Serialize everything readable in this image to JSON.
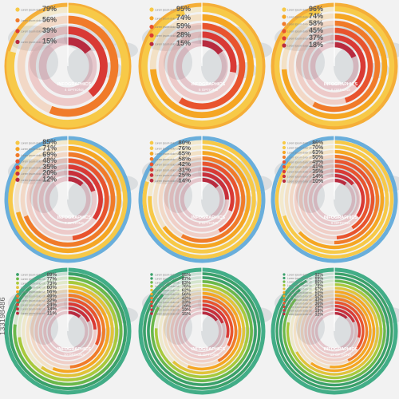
{
  "watermark": "133198486",
  "infographics_label": "INFOGRAPHICS",
  "item_caption": "Lorem ipsum dolor sit",
  "colors": {
    "background": "#f2f2f2",
    "map": "#c9cdd2",
    "orange_ring": "#f5a623",
    "blue_ring": "#5aa6d8",
    "green_ring": "#2fa57b",
    "warm_scale": [
      "#f7c948",
      "#f5a623",
      "#f07b2a",
      "#e8542e",
      "#d93a35",
      "#c8303b",
      "#b82b3f"
    ],
    "green_scale": [
      "#3aa06a",
      "#6ab84a",
      "#a8c93c",
      "#e0c33a",
      "#f5a623",
      "#f07b2a",
      "#e8542e",
      "#d93a35",
      "#c8303b",
      "#b82b3f"
    ]
  },
  "panels": [
    {
      "theme": "orange",
      "subtitle": "4 OPTIONS",
      "values": [
        "79%",
        "56%",
        "39%",
        "15%"
      ],
      "percents": [
        79,
        56,
        39,
        15
      ]
    },
    {
      "theme": "orange",
      "subtitle": "5 OPTIONS",
      "values": [
        "95%",
        "74%",
        "59%",
        "28%",
        "15%"
      ],
      "percents": [
        95,
        74,
        59,
        28,
        15
      ]
    },
    {
      "theme": "orange",
      "subtitle": "6 OPTIONS",
      "values": [
        "96%",
        "74%",
        "58%",
        "45%",
        "37%",
        "18%"
      ],
      "percents": [
        96,
        74,
        58,
        45,
        37,
        18
      ]
    },
    {
      "theme": "blue",
      "subtitle": "7 OPTIONS",
      "values": [
        "85%",
        "71%",
        "69%",
        "48%",
        "35%",
        "20%",
        "12%"
      ],
      "percents": [
        85,
        71,
        69,
        48,
        35,
        20,
        12
      ]
    },
    {
      "theme": "blue",
      "subtitle": "8 OPTIONS",
      "values": [
        "80%",
        "76%",
        "65%",
        "58%",
        "42%",
        "31%",
        "25%",
        "14%"
      ],
      "percents": [
        80,
        76,
        65,
        58,
        42,
        31,
        25,
        14
      ]
    },
    {
      "theme": "blue",
      "subtitle": "9 OPTIONS",
      "values": [
        "86%",
        "70%",
        "63%",
        "50%",
        "49%",
        "41%",
        "35%",
        "14%",
        "10%"
      ],
      "percents": [
        86,
        70,
        63,
        50,
        49,
        41,
        35,
        14,
        10
      ]
    },
    {
      "theme": "green",
      "subtitle": "10 OPTIONS",
      "values": [
        "89%",
        "77%",
        "73%",
        "60%",
        "56%",
        "49%",
        "32%",
        "24%",
        "18%",
        "11%"
      ],
      "percents": [
        89,
        77,
        73,
        60,
        56,
        49,
        32,
        24,
        18,
        11
      ]
    },
    {
      "theme": "green",
      "subtitle": "11 OPTIONS",
      "values": [
        "95%",
        "87%",
        "83%",
        "76%",
        "62%",
        "56%",
        "42%",
        "33%",
        "29%",
        "19%",
        "15%"
      ],
      "percents": [
        95,
        87,
        83,
        76,
        62,
        56,
        42,
        33,
        29,
        19,
        15
      ]
    },
    {
      "theme": "green",
      "subtitle": "12 OPTIONS",
      "values": [
        "92%",
        "89%",
        "86%",
        "78%",
        "67%",
        "60%",
        "52%",
        "43%",
        "36%",
        "29%",
        "18%",
        "12%"
      ],
      "percents": [
        92,
        89,
        86,
        78,
        67,
        60,
        52,
        43,
        36,
        29,
        18,
        12
      ]
    }
  ]
}
